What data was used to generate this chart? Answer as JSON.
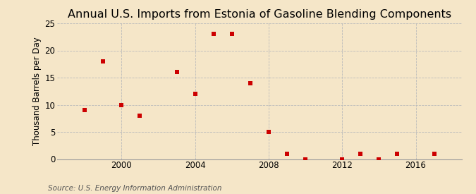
{
  "title": "Annual U.S. Imports from Estonia of Gasoline Blending Components",
  "ylabel": "Thousand Barrels per Day",
  "source": "Source: U.S. Energy Information Administration",
  "background_color": "#f5e6c8",
  "marker_color": "#cc0000",
  "years": [
    1998,
    1999,
    2000,
    2001,
    2003,
    2004,
    2005,
    2006,
    2007,
    2008,
    2009,
    2010,
    2012,
    2013,
    2014,
    2015,
    2017
  ],
  "values": [
    9,
    18,
    10,
    8,
    16,
    12,
    23,
    23,
    14,
    5,
    1,
    0,
    0,
    1,
    0,
    1,
    1
  ],
  "xlim": [
    1996.5,
    2018.5
  ],
  "ylim": [
    0,
    25
  ],
  "yticks": [
    0,
    5,
    10,
    15,
    20,
    25
  ],
  "xticks": [
    2000,
    2004,
    2008,
    2012,
    2016
  ],
  "grid_color": "#bbbbbb",
  "title_fontsize": 11.5,
  "label_fontsize": 8.5,
  "tick_fontsize": 8.5,
  "source_fontsize": 7.5
}
